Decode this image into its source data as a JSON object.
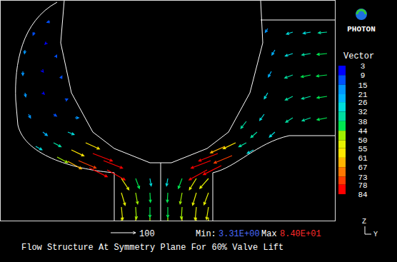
{
  "chart_data": {
    "type": "quiver",
    "title": "Flow Structure At Symmetry Plane For 60% Valve Lift",
    "tick_labels": false,
    "xlim": [
      0,
      470
    ],
    "ylim": [
      0,
      310
    ],
    "vectors": {
      "x": [
        48,
        35,
        32,
        35,
        40,
        70,
        65,
        60,
        60,
        78,
        85,
        92,
        75,
        60,
        50,
        75,
        95,
        105,
        80,
        100,
        120,
        110,
        130,
        145,
        125,
        150,
        95,
        355,
        345,
        330,
        315,
        325,
        305,
        295,
        310,
        290,
        170,
        190,
        210,
        235,
        255,
        275,
        292,
        170,
        190,
        210,
        235,
        255,
        275,
        292,
        170,
        190,
        210,
        235,
        255,
        275,
        292,
        170,
        190,
        210,
        235,
        255,
        275,
        292,
        410,
        435,
        458,
        410,
        435,
        458,
        410,
        435,
        458,
        410,
        435,
        458,
        410,
        435,
        458,
        375,
        385,
        380,
        375,
        370,
        385,
        360,
        345
      ],
      "y": [
        265,
        240,
        210,
        180,
        150,
        280,
        250,
        210,
        180,
        230,
        200,
        170,
        150,
        125,
        105,
        110,
        125,
        145,
        90,
        100,
        110,
        85,
        95,
        85,
        75,
        72,
        84,
        100,
        110,
        110,
        105,
        92,
        95,
        85,
        78,
        72,
        60,
        60,
        60,
        60,
        60,
        60,
        60,
        40,
        40,
        40,
        40,
        40,
        40,
        40,
        20,
        20,
        20,
        20,
        20,
        20,
        20,
        5,
        5,
        5,
        5,
        5,
        5,
        5,
        265,
        265,
        265,
        235,
        235,
        235,
        205,
        205,
        205,
        175,
        175,
        175,
        145,
        145,
        145,
        270,
        240,
        210,
        180,
        150,
        125,
        125,
        140
      ],
      "u": [
        -5,
        -2,
        0,
        3,
        8,
        -12,
        -6,
        2,
        6,
        4,
        5,
        8,
        12,
        18,
        25,
        30,
        25,
        15,
        42,
        50,
        55,
        70,
        78,
        76,
        72,
        72,
        55,
        -25,
        -30,
        -50,
        -58,
        -72,
        -76,
        -78,
        -72,
        -72,
        30,
        15,
        5,
        -5,
        -15,
        -28,
        -35,
        15,
        8,
        2,
        -2,
        -8,
        -15,
        -18,
        5,
        3,
        0,
        0,
        -3,
        -5,
        -8,
        2,
        1,
        0,
        0,
        -1,
        -2,
        -3,
        -25,
        -30,
        -35,
        -30,
        -35,
        -40,
        -32,
        -38,
        -42,
        -30,
        -36,
        -40,
        -28,
        -34,
        -40,
        -10,
        -12,
        -12,
        -14,
        -18,
        -22,
        -25,
        -22
      ],
      "v": [
        -12,
        -15,
        -16,
        -16,
        -15,
        -4,
        -6,
        -2.6,
        -6,
        8,
        10,
        4,
        -8,
        -14,
        -14,
        -16,
        -10,
        0,
        -22,
        -24,
        -25,
        -30,
        -30,
        -30,
        -36,
        -40,
        -30,
        -14,
        -16,
        -24,
        -26,
        -30,
        -30,
        -30,
        -36,
        -40,
        -45,
        -40,
        -30,
        -30,
        -40,
        -45,
        -40,
        -50,
        -45,
        -38,
        -38,
        -45,
        -50,
        -48,
        -52,
        -48,
        -42,
        -42,
        -48,
        -52,
        -50,
        -52,
        -50,
        -45,
        -45,
        -50,
        -52,
        -50,
        -8,
        -5,
        -3,
        -10,
        -6,
        -4,
        -12,
        -8,
        -5,
        -15,
        -10,
        -6,
        -18,
        -12,
        -8,
        -15,
        -20,
        -22,
        -24,
        -25,
        -20,
        -22,
        -28
      ]
    },
    "colorbar": {
      "title": "Vector",
      "range": [
        3,
        84
      ],
      "ticks": [
        3,
        9,
        15,
        21,
        26,
        32,
        38,
        44,
        50,
        55,
        61,
        67,
        73,
        78,
        84
      ],
      "colors": [
        "#0000ff",
        "#0050ff",
        "#0096ff",
        "#00b4ff",
        "#00dcdc",
        "#00dca0",
        "#00e650",
        "#a0f000",
        "#e6f000",
        "#ffe600",
        "#ffb400",
        "#ff7800",
        "#ff3c00",
        "#ff0000"
      ]
    },
    "reference_vector": 100,
    "min_text": "Min:",
    "min": {
      "value": 3.31,
      "label": "3.31E+00"
    },
    "max_text": "Max",
    "max": {
      "value": 84.0,
      "label": "8.40E+01"
    },
    "logo": "PHOTON",
    "axis_triad": [
      "Z",
      "Y"
    ]
  }
}
